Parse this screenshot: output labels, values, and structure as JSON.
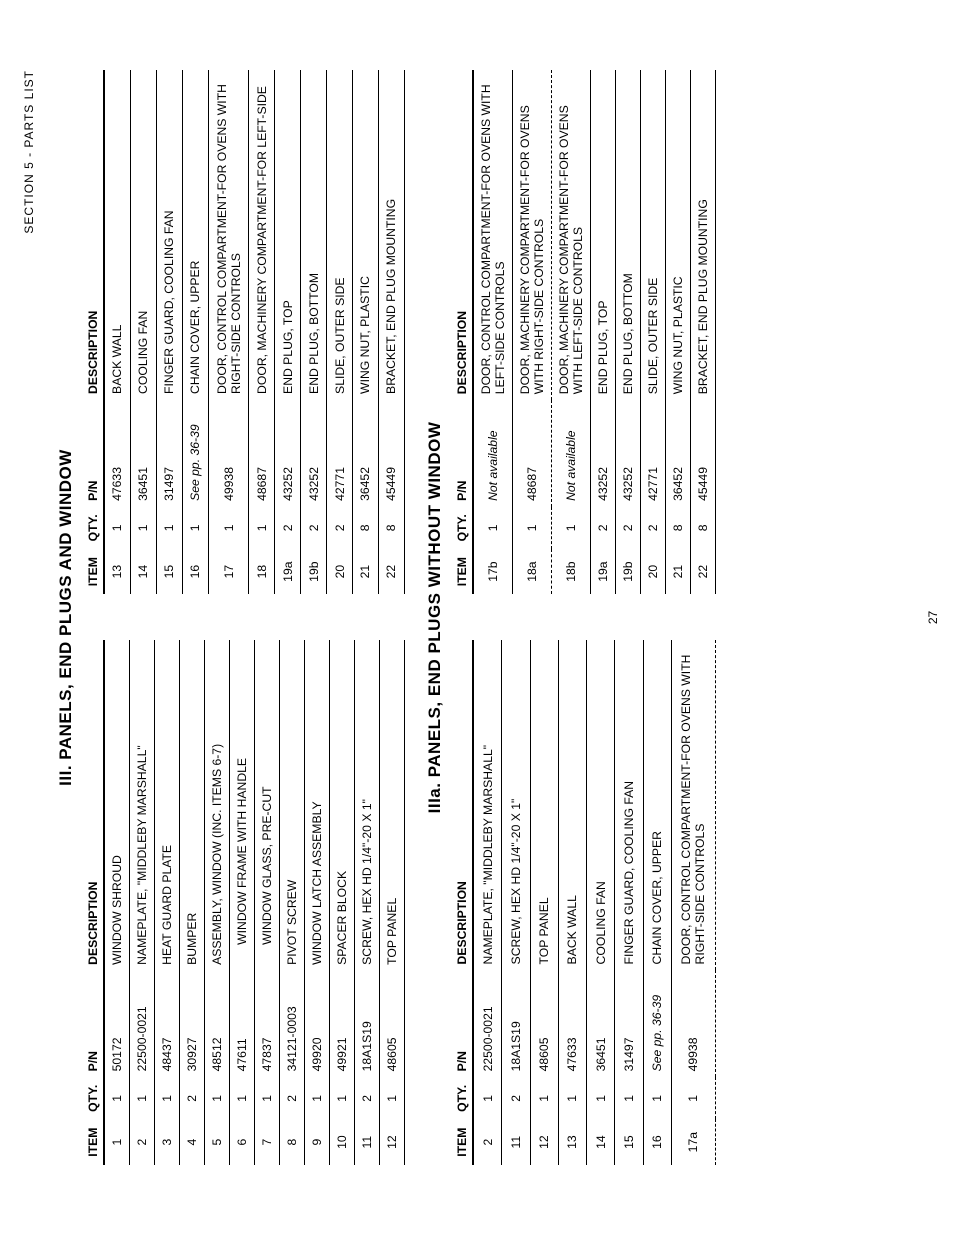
{
  "section_label": "SECTION 5 - PARTS LIST",
  "page_number": "27",
  "headers": {
    "item": "ITEM",
    "qty": "QTY.",
    "pn": "P/N",
    "desc": "DESCRIPTION"
  },
  "table_iii": {
    "title": "III.  PANELS, END PLUGS AND WINDOW",
    "left": [
      {
        "item": "1",
        "qty": "1",
        "pn": "50172",
        "desc": "WINDOW SHROUD"
      },
      {
        "item": "2",
        "qty": "1",
        "pn": "22500-0021",
        "desc": "NAMEPLATE, \"MIDDLEBY MARSHALL\""
      },
      {
        "item": "3",
        "qty": "1",
        "pn": "48437",
        "desc": "HEAT GUARD PLATE"
      },
      {
        "item": "4",
        "qty": "2",
        "pn": "30927",
        "desc": "BUMPER"
      },
      {
        "item": "5",
        "qty": "1",
        "pn": "48512",
        "desc": "ASSEMBLY, WINDOW (INC. ITEMS 6-7)"
      },
      {
        "item": "6",
        "qty": "1",
        "pn": "47611",
        "desc": "WINDOW FRAME WITH HANDLE",
        "indent": true
      },
      {
        "item": "7",
        "qty": "1",
        "pn": "47837",
        "desc": "WINDOW GLASS, PRE-CUT",
        "indent": true
      },
      {
        "item": "8",
        "qty": "2",
        "pn": "34121-0003",
        "desc": "PIVOT SCREW"
      },
      {
        "item": "9",
        "qty": "1",
        "pn": "49920",
        "desc": "WINDOW LATCH ASSEMBLY"
      },
      {
        "item": "10",
        "qty": "1",
        "pn": "49921",
        "desc": "SPACER BLOCK"
      },
      {
        "item": "11",
        "qty": "2",
        "pn": "18A1S19",
        "desc": "SCREW, HEX HD 1/4\"-20 X 1\""
      },
      {
        "item": "12",
        "qty": "1",
        "pn": "48605",
        "desc": "TOP PANEL"
      }
    ],
    "right": [
      {
        "item": "13",
        "qty": "1",
        "pn": "47633",
        "desc": "BACK WALL"
      },
      {
        "item": "14",
        "qty": "1",
        "pn": "36451",
        "desc": "COOLING FAN"
      },
      {
        "item": "15",
        "qty": "1",
        "pn": "31497",
        "desc": "FINGER GUARD, COOLING FAN"
      },
      {
        "item": "16",
        "qty": "1",
        "pn": "See pp. 36-39",
        "pn_ital": true,
        "desc": "CHAIN COVER, UPPER"
      },
      {
        "item": "17",
        "qty": "1",
        "pn": "49938",
        "desc": "DOOR, CONTROL COMPARTMENT-FOR OVENS WITH RIGHT-SIDE CONTROLS"
      },
      {
        "item": "18",
        "qty": "1",
        "pn": "48687",
        "desc": "DOOR, MACHINERY COMPARTMENT-FOR LEFT-SIDE"
      },
      {
        "item": "19a",
        "qty": "2",
        "pn": "43252",
        "desc": "END PLUG, TOP"
      },
      {
        "item": "19b",
        "qty": "2",
        "pn": "43252",
        "desc": "END PLUG, BOTTOM"
      },
      {
        "item": "20",
        "qty": "2",
        "pn": "42771",
        "desc": "SLIDE, OUTER SIDE"
      },
      {
        "item": "21",
        "qty": "8",
        "pn": "36452",
        "desc": "WING NUT, PLASTIC"
      },
      {
        "item": "22",
        "qty": "8",
        "pn": "45449",
        "desc": "BRACKET, END PLUG MOUNTING"
      }
    ]
  },
  "table_iiia": {
    "title": "IIIa.   PANELS, END PLUGS WITHOUT WINDOW",
    "left": [
      {
        "item": "2",
        "qty": "1",
        "pn": "22500-0021",
        "desc": "NAMEPLATE, \"MIDDLEBY MARSHALL\""
      },
      {
        "item": "11",
        "qty": "2",
        "pn": "18A1S19",
        "desc": "SCREW, HEX HD 1/4\"-20 X 1\""
      },
      {
        "item": "12",
        "qty": "1",
        "pn": "48605",
        "desc": "TOP PANEL"
      },
      {
        "item": "13",
        "qty": "1",
        "pn": "47633",
        "desc": "BACK WALL"
      },
      {
        "item": "14",
        "qty": "1",
        "pn": "36451",
        "desc": "COOLING FAN"
      },
      {
        "item": "15",
        "qty": "1",
        "pn": "31497",
        "desc": "FINGER GUARD, COOLING FAN"
      },
      {
        "item": "16",
        "qty": "1",
        "pn": "See pp. 36-39",
        "pn_ital": true,
        "desc": "CHAIN COVER, UPPER"
      },
      {
        "item": "17a",
        "qty": "1",
        "pn": "49938",
        "desc": "DOOR, CONTROL COMPARTMENT-FOR OVENS WITH RIGHT-SIDE CONTROLS",
        "dashed": true
      }
    ],
    "right": [
      {
        "item": "17b",
        "qty": "1",
        "pn": "Not  available",
        "pn_ital": true,
        "desc": "DOOR, CONTROL COMPARTMENT-FOR OVENS WITH LEFT-SIDE CONTROLS"
      },
      {
        "item": "18a",
        "qty": "1",
        "pn": "48687",
        "desc": "DOOR, MACHINERY COMPARTMENT-FOR OVENS WITH RIGHT-SIDE CONTROLS",
        "dashed": true
      },
      {
        "item": "18b",
        "qty": "1",
        "pn": "Not  available",
        "pn_ital": true,
        "desc": "DOOR, MACHINERY COMPARTMENT-FOR OVENS WITH LEFT-SIDE CONTROLS"
      },
      {
        "item": "19a",
        "qty": "2",
        "pn": "43252",
        "desc": "END PLUG, TOP"
      },
      {
        "item": "19b",
        "qty": "2",
        "pn": "43252",
        "desc": "END PLUG, BOTTOM"
      },
      {
        "item": "20",
        "qty": "2",
        "pn": "42771",
        "desc": "SLIDE, OUTER SIDE"
      },
      {
        "item": "21",
        "qty": "8",
        "pn": "36452",
        "desc": "WING NUT, PLASTIC"
      },
      {
        "item": "22",
        "qty": "8",
        "pn": "45449",
        "desc": "BRACKET, END PLUG MOUNTING"
      }
    ]
  }
}
